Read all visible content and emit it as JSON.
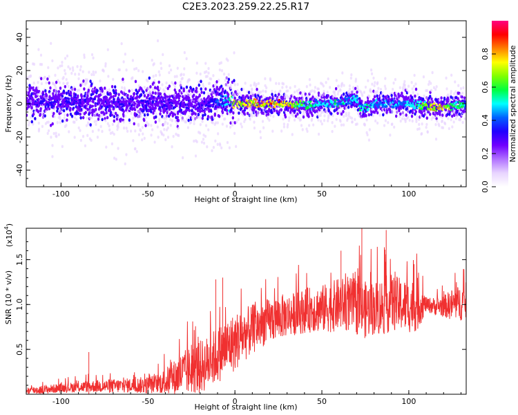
{
  "title": "C2E3.2023.259.22.25.R17",
  "chart_data": [
    {
      "type": "heatmap",
      "xlabel": "Height of straight line (km)",
      "ylabel": "Frequency (Hz)",
      "xlim": [
        -120,
        133
      ],
      "ylim": [
        -50,
        50
      ],
      "xticks": [
        -100,
        -50,
        0,
        50,
        100
      ],
      "yticks": [
        -40,
        -20,
        0,
        20,
        40
      ],
      "colorbar": {
        "label": "Normalized spectral amplitude",
        "range": [
          0.0,
          1.0
        ],
        "ticks": [
          0.0,
          0.2,
          0.4,
          0.6,
          0.8
        ],
        "colors": [
          "#ffffff",
          "#e8d4ff",
          "#b070ff",
          "#7000ff",
          "#2000ff",
          "#0060ff",
          "#00ffff",
          "#00ff40",
          "#80ff00",
          "#ffff00",
          "#ff8000",
          "#ff0000",
          "#ff0080"
        ]
      },
      "ridge": {
        "x": [
          -120,
          -100,
          -80,
          -60,
          -40,
          -20,
          -10,
          -5,
          0,
          10,
          20,
          30,
          40,
          50,
          60,
          65,
          70,
          72,
          75,
          80,
          90,
          100,
          105,
          110,
          115,
          120,
          125,
          130,
          133
        ],
        "freq": [
          2,
          1,
          1,
          0,
          1,
          0,
          1,
          2,
          0,
          0,
          0,
          0,
          -1,
          0,
          0,
          2,
          3,
          -3,
          -2,
          0,
          0,
          0,
          -1,
          -1,
          -2,
          -2,
          -1,
          -1,
          0
        ],
        "peak_amplitude": [
          0.3,
          0.35,
          0.3,
          0.3,
          0.3,
          0.3,
          0.4,
          0.5,
          0.75,
          0.85,
          0.85,
          0.85,
          0.6,
          0.5,
          0.55,
          0.5,
          0.5,
          0.6,
          0.6,
          0.5,
          0.5,
          0.5,
          0.55,
          0.75,
          0.85,
          0.85,
          0.65,
          0.6,
          0.5
        ]
      }
    },
    {
      "type": "line",
      "xlabel": "Height of straight line (km)",
      "ylabel": "SNR (10 * v/v)",
      "scale_label": "(x10",
      "scale_exp": "4",
      "scale_close": ")",
      "xlim": [
        -120,
        133
      ],
      "ylim": [
        0,
        1.85
      ],
      "xticks": [
        -100,
        -50,
        0,
        50,
        100
      ],
      "yticks": [
        0.5,
        1.0,
        1.5
      ],
      "ytick_labels": [
        "0.5",
        "1.0",
        "1.5"
      ],
      "color": "#f03030",
      "series": [
        {
          "x": [
            -120,
            -110,
            -100,
            -90,
            -80,
            -70,
            -60,
            -50,
            -45,
            -40,
            -35,
            -30,
            -25,
            -20,
            -15,
            -10,
            -5,
            0,
            5,
            10,
            15,
            20,
            25,
            30,
            35,
            40,
            45,
            50,
            55,
            60,
            65,
            70,
            75,
            80,
            85,
            90,
            95,
            100,
            105,
            110,
            115,
            120,
            125,
            130,
            133
          ],
          "baseline": [
            0.04,
            0.05,
            0.07,
            0.08,
            0.09,
            0.09,
            0.1,
            0.1,
            0.12,
            0.14,
            0.18,
            0.23,
            0.27,
            0.3,
            0.36,
            0.44,
            0.52,
            0.58,
            0.66,
            0.72,
            0.78,
            0.82,
            0.86,
            0.88,
            0.9,
            0.93,
            0.95,
            0.95,
            0.97,
            1.0,
            1.0,
            0.98,
            0.94,
            0.96,
            0.98,
            1.02,
            1.0,
            0.98,
            1.0,
            1.0,
            0.98,
            0.98,
            1.0,
            1.02,
            1.02
          ],
          "spread": [
            0.04,
            0.05,
            0.05,
            0.06,
            0.07,
            0.08,
            0.08,
            0.1,
            0.1,
            0.15,
            0.2,
            0.25,
            0.27,
            0.3,
            0.3,
            0.32,
            0.32,
            0.33,
            0.3,
            0.28,
            0.26,
            0.25,
            0.25,
            0.24,
            0.24,
            0.25,
            0.26,
            0.27,
            0.28,
            0.3,
            0.3,
            0.32,
            0.32,
            0.3,
            0.33,
            0.32,
            0.3,
            0.3,
            0.3,
            0.08,
            0.1,
            0.12,
            0.18,
            0.2,
            0.2
          ]
        }
      ],
      "spikes": [
        {
          "x": -84,
          "y": 0.47
        },
        {
          "x": -25,
          "y": 0.55
        },
        {
          "x": -11,
          "y": 1.28
        },
        {
          "x": -7,
          "y": 1.3
        },
        {
          "x": 61,
          "y": 1.6
        },
        {
          "x": 73,
          "y": 1.85
        },
        {
          "x": 87,
          "y": 1.83
        },
        {
          "x": 103,
          "y": 1.45
        }
      ]
    }
  ]
}
